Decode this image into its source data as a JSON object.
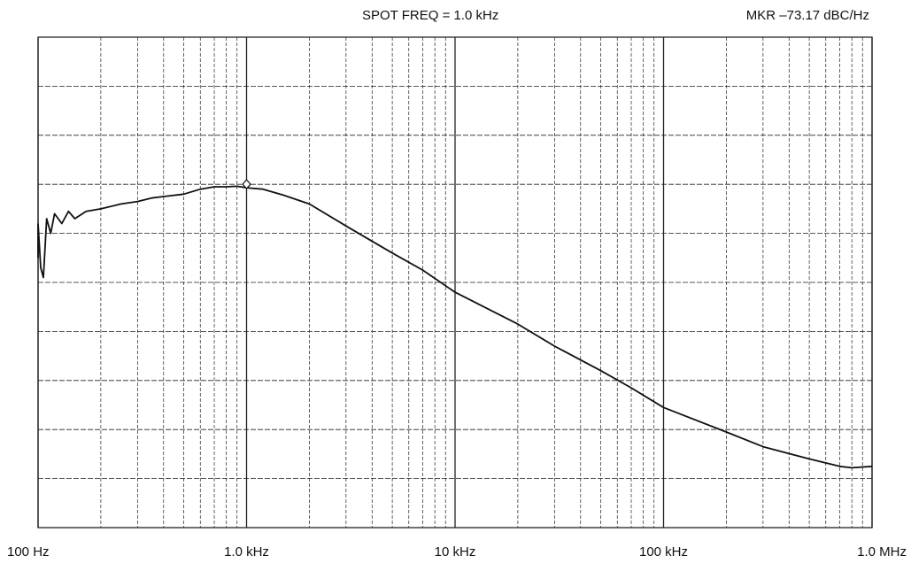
{
  "header": {
    "spot_freq": "SPOT FREQ = 1.0 kHz",
    "marker": "MKR –73.17 dBC/Hz"
  },
  "chart_data": {
    "type": "line",
    "title": "",
    "xlabel": "",
    "ylabel": "",
    "x_scale": "log",
    "xlim": [
      100,
      1000000
    ],
    "x_tick_values": [
      100,
      1000,
      10000,
      100000,
      1000000
    ],
    "x_tick_labels": [
      "100 Hz",
      "1.0 kHz",
      "10 kHz",
      "100 kHz",
      "1.0 MHz"
    ],
    "y_divisions": 10,
    "grid": true,
    "marker": {
      "x": 1000,
      "label": "MKR –73.17 dBC/Hz"
    },
    "colors": {
      "trace": "#111111",
      "grid": "#222222"
    },
    "series": [
      {
        "x": [
          100,
          103,
          106,
          110,
          115,
          120,
          130,
          140,
          150,
          170,
          200,
          250,
          300,
          350,
          400,
          500,
          600,
          700,
          800,
          900,
          1000,
          1200,
          1500,
          2000,
          3000,
          5000,
          7000,
          10000,
          20000,
          30000,
          50000,
          70000,
          100000,
          200000,
          300000,
          500000,
          700000,
          800000,
          1000000
        ],
        "y": [
          6.2,
          5.3,
          5.1,
          6.3,
          6.0,
          6.4,
          6.2,
          6.45,
          6.3,
          6.45,
          6.5,
          6.6,
          6.65,
          6.72,
          6.75,
          6.8,
          6.9,
          6.95,
          6.95,
          6.96,
          6.93,
          6.9,
          6.78,
          6.6,
          6.15,
          5.6,
          5.25,
          4.8,
          4.15,
          3.7,
          3.2,
          2.85,
          2.45,
          1.95,
          1.65,
          1.4,
          1.25,
          1.22,
          1.25
        ]
      }
    ]
  }
}
